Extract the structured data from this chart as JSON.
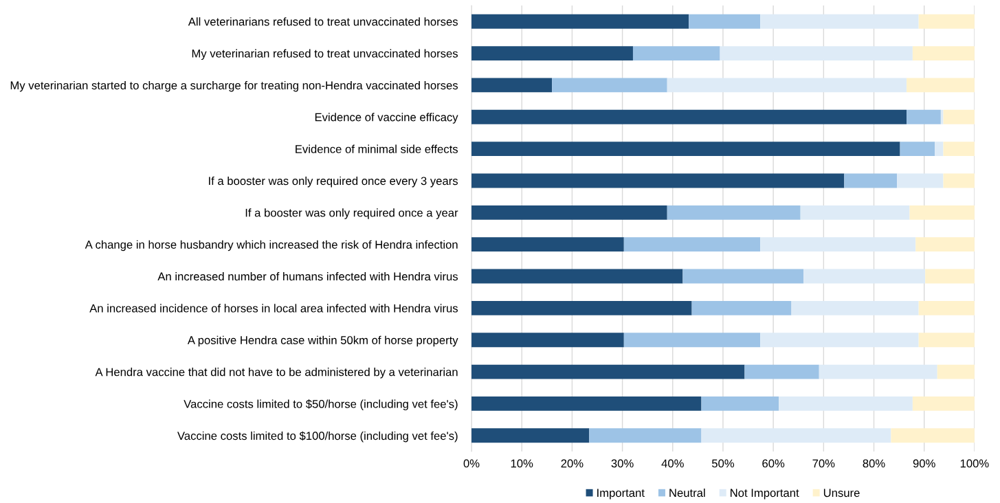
{
  "chart_data": {
    "type": "bar",
    "orientation": "horizontal",
    "stacked": true,
    "categories": [
      "All veterinarians refused to treat unvaccinated horses",
      "My veterinarian refused to treat unvaccinated horses",
      "My veterinarian started to charge a surcharge for treating non-Hendra vaccinated horses",
      "Evidence of vaccine efficacy",
      "Evidence of minimal side effects",
      "If a booster was only required once every 3 years",
      "If a booster was only required once a year",
      "A change in horse husbandry which increased the risk of Hendra infection",
      "An increased number of humans infected with Hendra virus",
      "An increased incidence of horses in local area infected with Hendra virus",
      "A positive Hendra case within 50km of horse property",
      "A Hendra vaccine that did not have to be administered by a veterinarian",
      "Vaccine costs limited to $50/horse (including vet fee's)",
      "Vaccine costs limited to $100/horse (including vet fee's)"
    ],
    "series": [
      {
        "name": "Important",
        "color": "#1f4e79",
        "values": [
          43.2,
          32.1,
          16.0,
          86.5,
          85.2,
          74.1,
          38.9,
          30.3,
          42.0,
          43.8,
          30.3,
          54.3,
          45.7,
          23.4
        ]
      },
      {
        "name": "Neutral",
        "color": "#9dc3e6",
        "values": [
          14.2,
          17.3,
          22.9,
          6.8,
          6.9,
          10.5,
          26.5,
          27.1,
          24.0,
          19.8,
          27.1,
          14.8,
          15.4,
          22.3
        ]
      },
      {
        "name": "Not Important",
        "color": "#deebf7",
        "values": [
          31.5,
          38.3,
          47.6,
          0.5,
          1.7,
          9.2,
          21.7,
          30.9,
          24.2,
          25.3,
          31.5,
          23.5,
          26.6,
          37.7
        ]
      },
      {
        "name": "Unsure",
        "color": "#fff2cc",
        "values": [
          11.1,
          12.3,
          13.5,
          6.2,
          6.2,
          6.2,
          12.9,
          11.7,
          9.8,
          11.1,
          11.1,
          7.4,
          12.3,
          16.6
        ]
      }
    ],
    "xlim": [
      0,
      100
    ],
    "xticks": [
      {
        "value": 0,
        "label": "0%"
      },
      {
        "value": 10,
        "label": "10%"
      },
      {
        "value": 20,
        "label": "20%"
      },
      {
        "value": 30,
        "label": "30%"
      },
      {
        "value": 40,
        "label": "40%"
      },
      {
        "value": 50,
        "label": "50%"
      },
      {
        "value": 60,
        "label": "60%"
      },
      {
        "value": 70,
        "label": "70%"
      },
      {
        "value": 80,
        "label": "80%"
      },
      {
        "value": 90,
        "label": "90%"
      },
      {
        "value": 100,
        "label": "100%"
      }
    ],
    "grid": "x",
    "legend": "bottom"
  }
}
